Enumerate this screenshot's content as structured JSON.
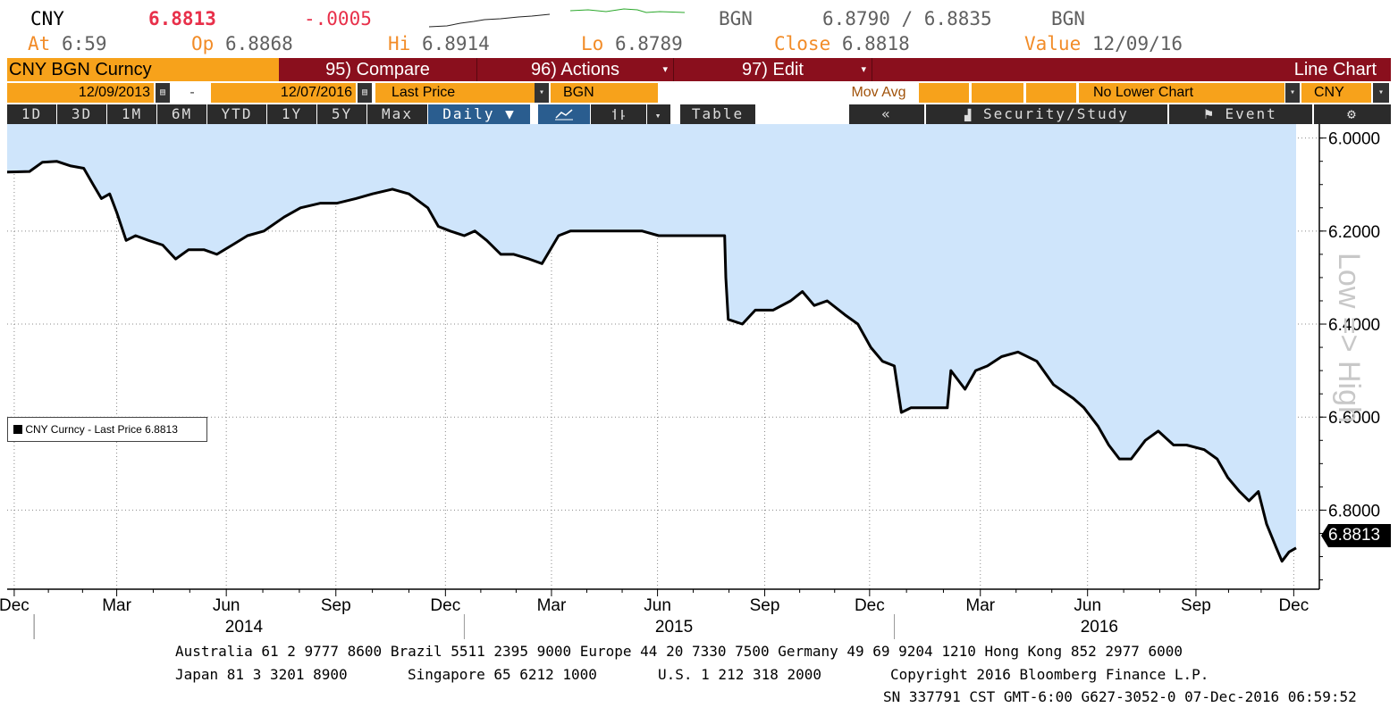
{
  "header": {
    "ticker": "CNY",
    "last": "6.8813",
    "change": "-.0005",
    "source1": "BGN",
    "bid_ask": "6.8790 / 6.8835",
    "source2": "BGN",
    "at_label": "At",
    "at_value": "6:59",
    "op_label": "Op",
    "op_value": "6.8868",
    "hi_label": "Hi",
    "hi_value": "6.8914",
    "lo_label": "Lo",
    "lo_value": "6.8789",
    "close_label": "Close",
    "close_value": "6.8818",
    "value_label": "Value",
    "value_value": "12/09/16"
  },
  "menubar": {
    "security": "CNY BGN Curncy",
    "compare": "95) Compare",
    "actions": "96) Actions",
    "edit": "97) Edit",
    "chart_type": "Line Chart"
  },
  "toolbar2": {
    "start_date": "12/09/2013",
    "dash": "-",
    "end_date": "12/07/2016",
    "field": "Last Price",
    "source": "BGN",
    "mov_avg": "Mov Avg",
    "lower_chart": "No Lower Chart",
    "currency": "CNY"
  },
  "toolbar3": {
    "periods": [
      "1D",
      "3D",
      "1M",
      "6M",
      "YTD",
      "1Y",
      "5Y",
      "Max"
    ],
    "frequency": "Daily ▼",
    "table": "Table",
    "rewind": "«",
    "security_study": "Security/Study",
    "event": "Event",
    "settings_icon": "gear-icon"
  },
  "legend": {
    "text": "CNY Curncy - Last Price 6.8813"
  },
  "price_tag": "6.8813",
  "side_label": "Low => High",
  "footer": {
    "line1": "Australia 61 2 9777 8600 Brazil 5511 2395 9000 Europe 44 20 7330 7500 Germany 49 69 9204 1210 Hong Kong 852 2977 6000",
    "line2a": "Japan 81 3 3201 8900",
    "line2b": "Singapore 65 6212 1000",
    "line2c": "U.S. 1 212 318 2000",
    "line2d": "Copyright 2016 Bloomberg Finance L.P.",
    "line3": "SN 337791 CST  GMT-6:00 G627-3052-0 07-Dec-2016 06:59:52"
  },
  "colors": {
    "accent_orange": "#f7a21b",
    "menu_red": "#8a0f1d",
    "area_fill": "#cfe5fb",
    "change_red": "#e8304a"
  },
  "chart_data": {
    "type": "area",
    "title": "",
    "series_name": "CNY Curncy - Last Price",
    "x_tick_labels": [
      "Dec",
      "Mar",
      "Jun",
      "Sep",
      "Dec",
      "Mar",
      "Jun",
      "Sep",
      "Dec",
      "Mar",
      "Jun",
      "Sep",
      "Dec"
    ],
    "year_labels": [
      "2014",
      "2015",
      "2016"
    ],
    "y_ticks": [
      "6.0000",
      "6.2000",
      "6.4000",
      "6.6000",
      "6.8000"
    ],
    "ylim": [
      5.97,
      6.97
    ],
    "y_inverted": true,
    "xlim": [
      "2013-12-09",
      "2016-12-07"
    ],
    "grid": true,
    "legend_position": "left-middle",
    "points": [
      [
        "2013-12-09",
        6.073
      ],
      [
        "2013-12-28",
        6.072
      ],
      [
        "2014-01-08",
        6.052
      ],
      [
        "2014-01-20",
        6.05
      ],
      [
        "2014-02-01",
        6.06
      ],
      [
        "2014-02-12",
        6.065
      ],
      [
        "2014-02-20",
        6.1
      ],
      [
        "2014-02-27",
        6.13
      ],
      [
        "2014-03-06",
        6.12
      ],
      [
        "2014-03-12",
        6.16
      ],
      [
        "2014-03-20",
        6.22
      ],
      [
        "2014-03-28",
        6.21
      ],
      [
        "2014-04-08",
        6.22
      ],
      [
        "2014-04-20",
        6.23
      ],
      [
        "2014-05-01",
        6.26
      ],
      [
        "2014-05-12",
        6.24
      ],
      [
        "2014-05-25",
        6.24
      ],
      [
        "2014-06-05",
        6.25
      ],
      [
        "2014-06-18",
        6.23
      ],
      [
        "2014-07-01",
        6.21
      ],
      [
        "2014-07-15",
        6.2
      ],
      [
        "2014-08-01",
        6.17
      ],
      [
        "2014-08-15",
        6.15
      ],
      [
        "2014-09-01",
        6.14
      ],
      [
        "2014-09-15",
        6.14
      ],
      [
        "2014-10-01",
        6.13
      ],
      [
        "2014-10-15",
        6.12
      ],
      [
        "2014-11-01",
        6.11
      ],
      [
        "2014-11-15",
        6.12
      ],
      [
        "2014-12-01",
        6.15
      ],
      [
        "2014-12-10",
        6.19
      ],
      [
        "2014-12-20",
        6.2
      ],
      [
        "2015-01-01",
        6.21
      ],
      [
        "2015-01-10",
        6.2
      ],
      [
        "2015-01-20",
        6.22
      ],
      [
        "2015-02-01",
        6.25
      ],
      [
        "2015-02-12",
        6.25
      ],
      [
        "2015-02-25",
        6.26
      ],
      [
        "2015-03-08",
        6.27
      ],
      [
        "2015-03-15",
        6.24
      ],
      [
        "2015-03-22",
        6.21
      ],
      [
        "2015-04-01",
        6.2
      ],
      [
        "2015-04-15",
        6.2
      ],
      [
        "2015-05-01",
        6.2
      ],
      [
        "2015-05-15",
        6.2
      ],
      [
        "2015-06-01",
        6.2
      ],
      [
        "2015-06-15",
        6.21
      ],
      [
        "2015-07-01",
        6.21
      ],
      [
        "2015-08-10",
        6.21
      ],
      [
        "2015-08-11",
        6.3
      ],
      [
        "2015-08-13",
        6.39
      ],
      [
        "2015-08-25",
        6.4
      ],
      [
        "2015-09-05",
        6.37
      ],
      [
        "2015-09-20",
        6.37
      ],
      [
        "2015-10-05",
        6.35
      ],
      [
        "2015-10-15",
        6.33
      ],
      [
        "2015-10-25",
        6.36
      ],
      [
        "2015-11-05",
        6.35
      ],
      [
        "2015-11-20",
        6.38
      ],
      [
        "2015-12-01",
        6.4
      ],
      [
        "2015-12-12",
        6.45
      ],
      [
        "2015-12-22",
        6.48
      ],
      [
        "2016-01-01",
        6.49
      ],
      [
        "2016-01-07",
        6.59
      ],
      [
        "2016-01-15",
        6.58
      ],
      [
        "2016-02-01",
        6.58
      ],
      [
        "2016-02-15",
        6.58
      ],
      [
        "2016-02-18",
        6.5
      ],
      [
        "2016-03-01",
        6.54
      ],
      [
        "2016-03-10",
        6.5
      ],
      [
        "2016-03-20",
        6.49
      ],
      [
        "2016-04-01",
        6.47
      ],
      [
        "2016-04-15",
        6.46
      ],
      [
        "2016-05-01",
        6.48
      ],
      [
        "2016-05-15",
        6.53
      ],
      [
        "2016-06-01",
        6.56
      ],
      [
        "2016-06-10",
        6.58
      ],
      [
        "2016-06-22",
        6.62
      ],
      [
        "2016-07-01",
        6.66
      ],
      [
        "2016-07-10",
        6.69
      ],
      [
        "2016-07-20",
        6.69
      ],
      [
        "2016-08-01",
        6.65
      ],
      [
        "2016-08-12",
        6.63
      ],
      [
        "2016-08-25",
        6.66
      ],
      [
        "2016-09-05",
        6.66
      ],
      [
        "2016-09-20",
        6.67
      ],
      [
        "2016-10-01",
        6.69
      ],
      [
        "2016-10-10",
        6.73
      ],
      [
        "2016-10-20",
        6.76
      ],
      [
        "2016-10-28",
        6.78
      ],
      [
        "2016-11-05",
        6.76
      ],
      [
        "2016-11-12",
        6.83
      ],
      [
        "2016-11-20",
        6.88
      ],
      [
        "2016-11-25",
        6.91
      ],
      [
        "2016-12-01",
        6.89
      ],
      [
        "2016-12-07",
        6.8813
      ]
    ]
  }
}
